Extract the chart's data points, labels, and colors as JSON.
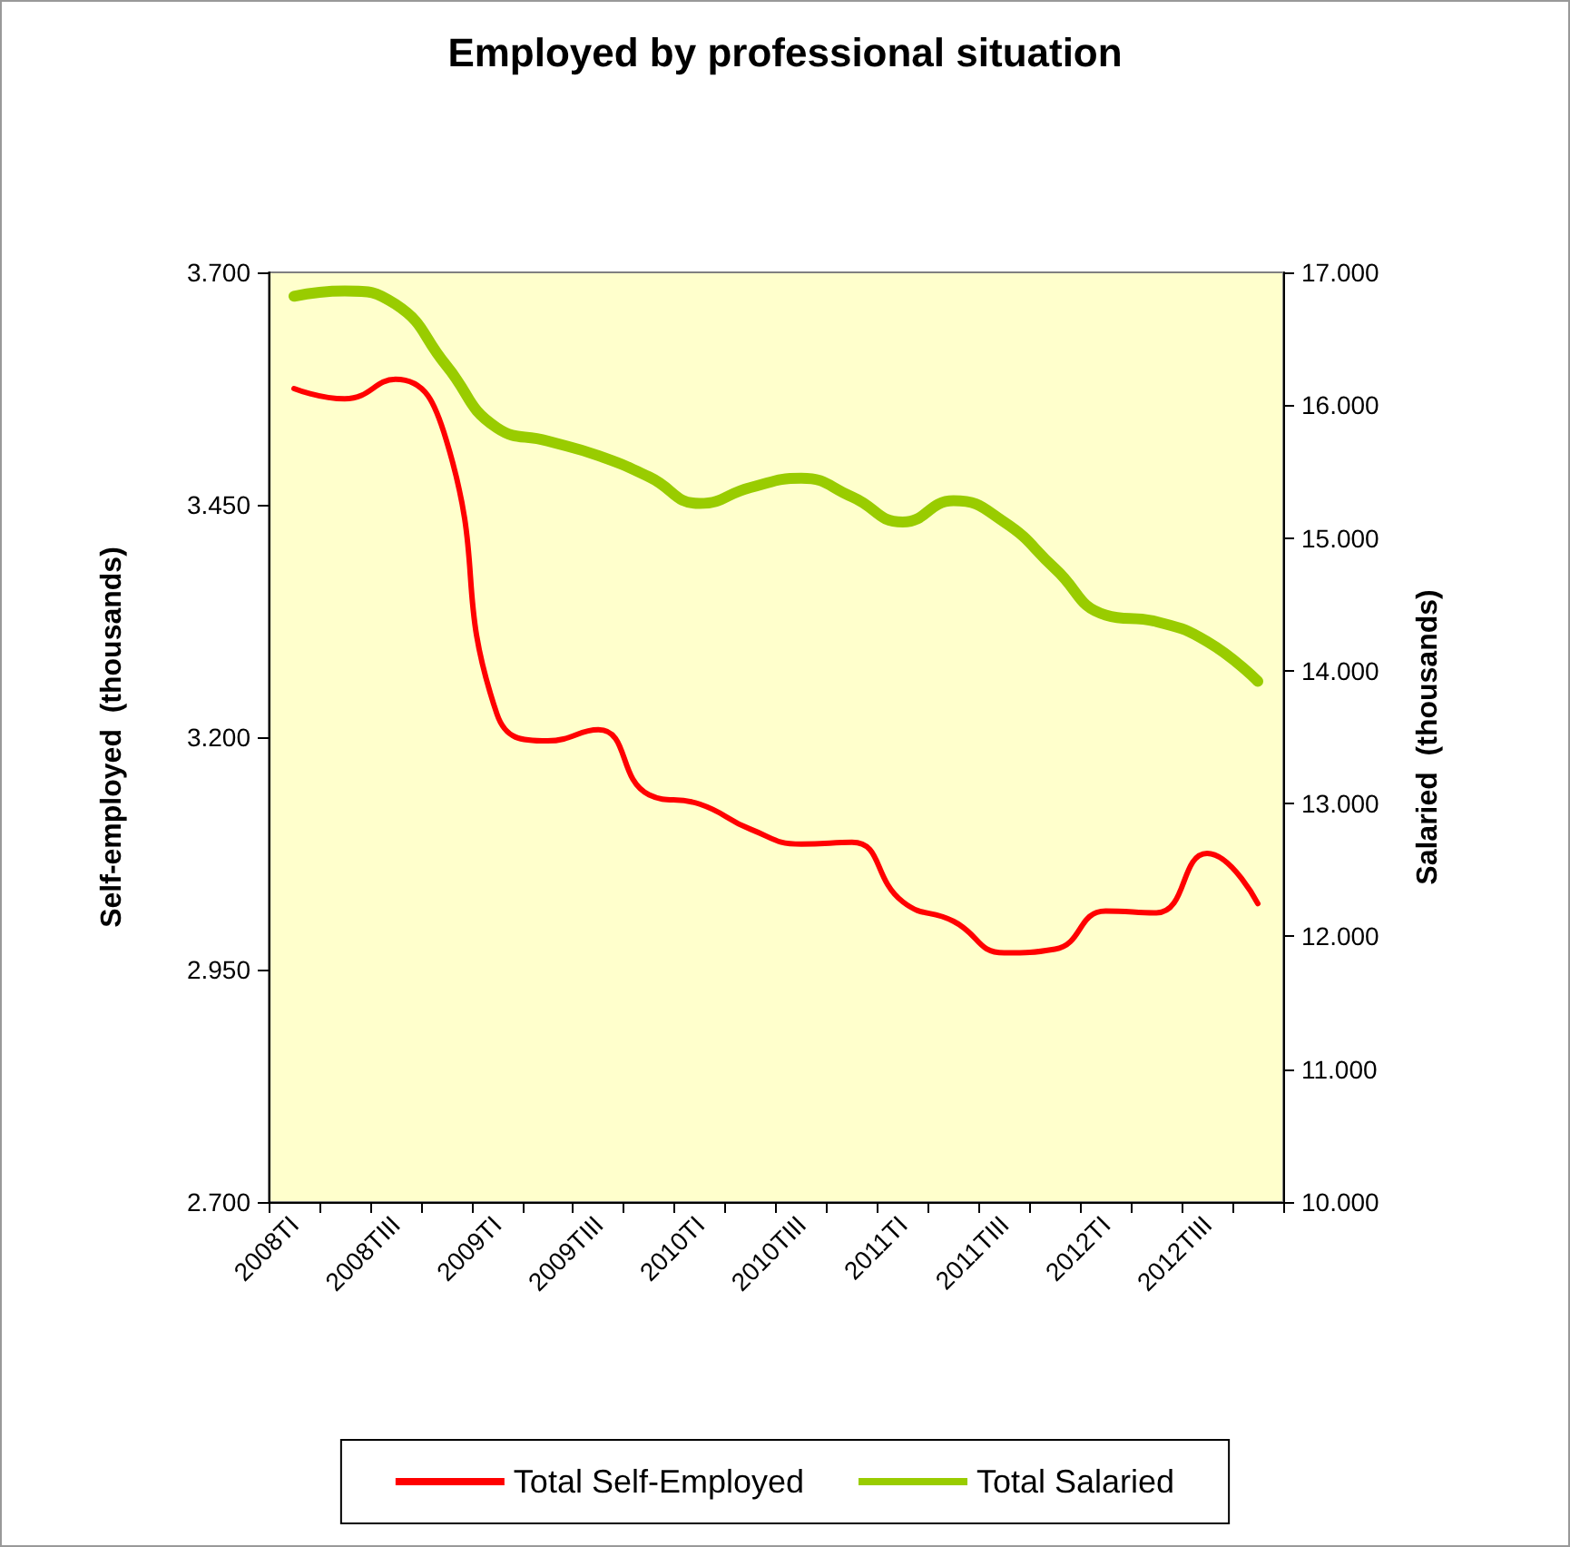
{
  "chart_data": {
    "type": "line",
    "title": "Employed by professional situation",
    "ylabel": "Self-employed  (thousands)",
    "y2label": "Salaried  (thousands)",
    "categories": [
      "2008TI",
      null,
      "2008TIII",
      null,
      "2009TI",
      null,
      "2009TIII",
      null,
      "2010TI",
      null,
      "2010TIII",
      null,
      "2011TI",
      null,
      "2011TIII",
      null,
      "2012TI",
      null,
      "2012TIII",
      null
    ],
    "series": [
      {
        "name": "Total Self-Employed",
        "color": "#ff0000",
        "values": [
          3575,
          3564,
          3585,
          3520,
          3225,
          3196,
          3208,
          3138,
          3128,
          3101,
          3085,
          3087,
          3023,
          3002,
          2968,
          2972,
          3013,
          3011,
          3075,
          3021
        ]
      },
      {
        "name": "Total Salaried",
        "color": "#99cc00",
        "axis": "y2",
        "values": [
          16820,
          16860,
          16760,
          16300,
          15830,
          15730,
          15620,
          15460,
          15260,
          15380,
          15450,
          15310,
          15120,
          15280,
          15120,
          14770,
          14420,
          14370,
          14220,
          13920
        ]
      }
    ],
    "ylim": [
      2700,
      3700
    ],
    "yticks": [
      {
        "value": 2700,
        "label": "2.700"
      },
      {
        "value": 2950,
        "label": "2.950"
      },
      {
        "value": 3200,
        "label": "3.200"
      },
      {
        "value": 3450,
        "label": "3.450"
      },
      {
        "value": 3700,
        "label": "3.700"
      }
    ],
    "y2lim": [
      10000,
      17000
    ],
    "y2ticks": [
      {
        "value": 10000,
        "label": "10.000"
      },
      {
        "value": 11000,
        "label": "11.000"
      },
      {
        "value": 12000,
        "label": "12.000"
      },
      {
        "value": 13000,
        "label": "13.000"
      },
      {
        "value": 14000,
        "label": "14.000"
      },
      {
        "value": 15000,
        "label": "15.000"
      },
      {
        "value": 16000,
        "label": "16.000"
      },
      {
        "value": 17000,
        "label": "17.000"
      }
    ],
    "grid": false,
    "legend": "bottom",
    "marker": "none",
    "line_style": "solid"
  }
}
